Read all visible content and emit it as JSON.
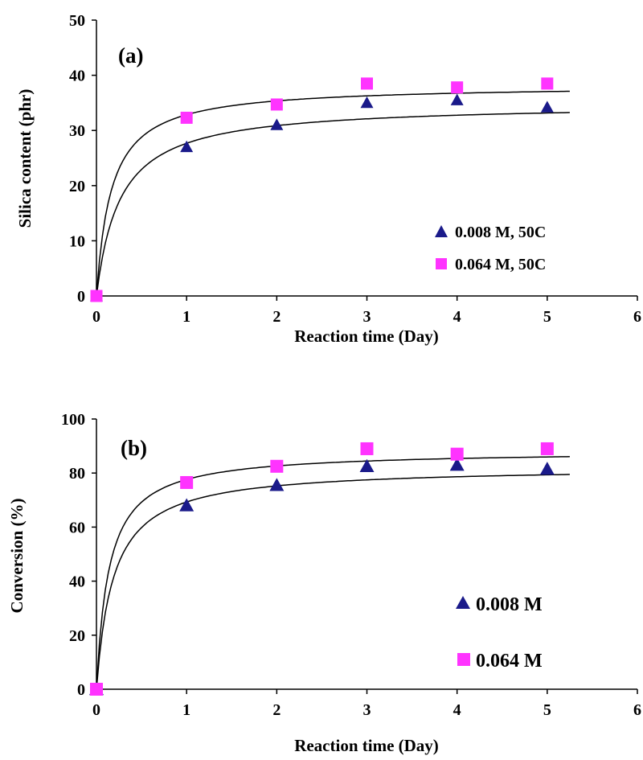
{
  "colors": {
    "series_triangle": "#1a1a8a",
    "series_square": "#ff33ff",
    "axis": "#000000",
    "fit_line": "#000000",
    "background": "#ffffff"
  },
  "chart_data": [
    {
      "type": "scatter",
      "panel_label": "(a)",
      "xlabel": "Reaction time (Day)",
      "ylabel": "Silica content (phr)",
      "xlim": [
        0,
        6
      ],
      "ylim": [
        0,
        50
      ],
      "x_ticks": [
        "0",
        "1",
        "2",
        "3",
        "4",
        "5",
        "6"
      ],
      "y_ticks": [
        "0",
        "10",
        "20",
        "30",
        "40",
        "50"
      ],
      "grid": false,
      "legend_position": "lower-right",
      "trendlines": true,
      "series": [
        {
          "name": "0.008 M, 50C",
          "marker": "triangle",
          "color": "#1a1a8a",
          "x": [
            0,
            1,
            2,
            3,
            4,
            5
          ],
          "y": [
            0,
            27,
            31,
            35,
            35.5,
            34.2
          ]
        },
        {
          "name": "0.064 M, 50C",
          "marker": "square",
          "color": "#ff33ff",
          "x": [
            0,
            1,
            2,
            3,
            4,
            5
          ],
          "y": [
            0,
            32.3,
            34.7,
            38.5,
            37.8,
            38.5
          ]
        }
      ]
    },
    {
      "type": "scatter",
      "panel_label": "(b)",
      "xlabel": "Reaction time (Day)",
      "ylabel": "Conversion (%)",
      "xlim": [
        0,
        6
      ],
      "ylim": [
        0,
        100
      ],
      "x_ticks": [
        "0",
        "1",
        "2",
        "3",
        "4",
        "5",
        "6"
      ],
      "y_ticks": [
        "0",
        "20",
        "40",
        "60",
        "80",
        "100"
      ],
      "grid": false,
      "legend_position": "lower-right",
      "trendlines": true,
      "series": [
        {
          "name": "0.008 M",
          "marker": "triangle",
          "color": "#1a1a8a",
          "x": [
            0,
            1,
            2,
            3,
            4,
            5
          ],
          "y": [
            0,
            68,
            75.5,
            82.5,
            83,
            81.5
          ]
        },
        {
          "name": "0.064 M",
          "marker": "square",
          "color": "#ff33ff",
          "x": [
            0,
            1,
            2,
            3,
            4,
            5
          ],
          "y": [
            0,
            76.5,
            82.5,
            89,
            87,
            89
          ]
        }
      ]
    }
  ]
}
